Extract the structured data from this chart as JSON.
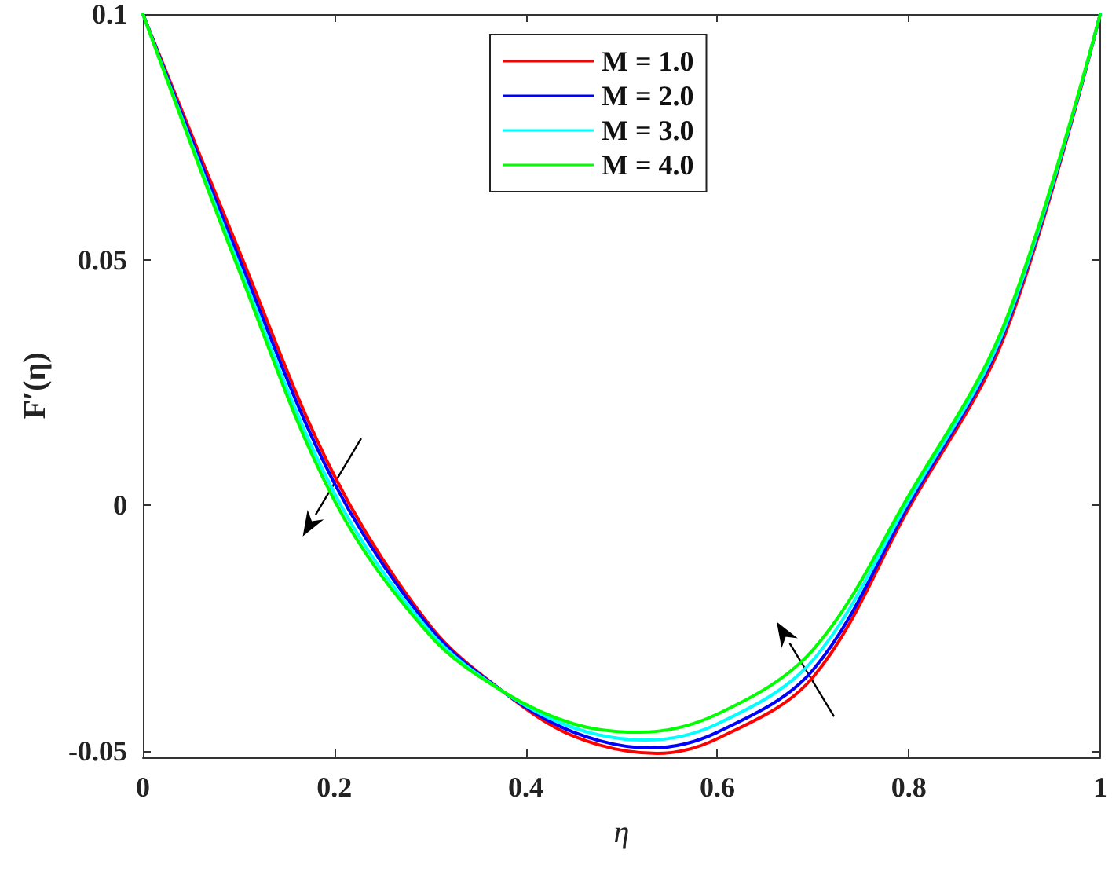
{
  "chart_data": {
    "type": "line",
    "xlabel": "η",
    "ylabel": "F′(η)",
    "xlim": [
      0,
      1
    ],
    "ylim": [
      -0.0513,
      0.1
    ],
    "xticks": [
      0,
      0.2,
      0.4,
      0.6,
      0.8,
      1
    ],
    "yticks": [
      -0.05,
      0,
      0.05,
      0.1
    ],
    "grid": false,
    "legend": "top",
    "marker": "none",
    "line_style": "solid",
    "series": [
      {
        "name": "M = 1.0",
        "color": "#ff0000",
        "x": [
          0,
          0.1,
          0.2,
          0.3,
          0.376,
          0.45,
          0.537,
          0.6,
          0.7,
          0.8,
          0.9,
          1
        ],
        "values": [
          0.1,
          0.052,
          0.006,
          -0.0245,
          -0.0379,
          -0.047,
          -0.0505,
          -0.0475,
          -0.035,
          -0.0006,
          0.0345,
          0.1
        ]
      },
      {
        "name": "M = 2.0",
        "color": "#0000ff",
        "x": [
          0,
          0.1,
          0.2,
          0.3,
          0.376,
          0.45,
          0.53,
          0.6,
          0.7,
          0.8,
          0.9,
          1
        ],
        "values": [
          0.1,
          0.0505,
          0.0045,
          -0.025,
          -0.0379,
          -0.0462,
          -0.0494,
          -0.0462,
          -0.0335,
          0.0002,
          0.0355,
          0.1
        ]
      },
      {
        "name": "M = 3.0",
        "color": "#00ffff",
        "x": [
          0,
          0.1,
          0.2,
          0.3,
          0.376,
          0.45,
          0.525,
          0.6,
          0.7,
          0.8,
          0.9,
          1
        ],
        "values": [
          0.1,
          0.049,
          0.0025,
          -0.0258,
          -0.0379,
          -0.0453,
          -0.0478,
          -0.0445,
          -0.0315,
          0.001,
          0.036,
          0.1
        ]
      },
      {
        "name": "M = 4.0",
        "color": "#00ff00",
        "x": [
          0,
          0.1,
          0.2,
          0.3,
          0.376,
          0.45,
          0.518,
          0.6,
          0.7,
          0.8,
          0.9,
          1
        ],
        "values": [
          0.1,
          0.048,
          0.001,
          -0.0265,
          -0.0379,
          -0.0445,
          -0.0462,
          -0.0425,
          -0.0294,
          0.002,
          0.037,
          0.1
        ]
      }
    ]
  }
}
